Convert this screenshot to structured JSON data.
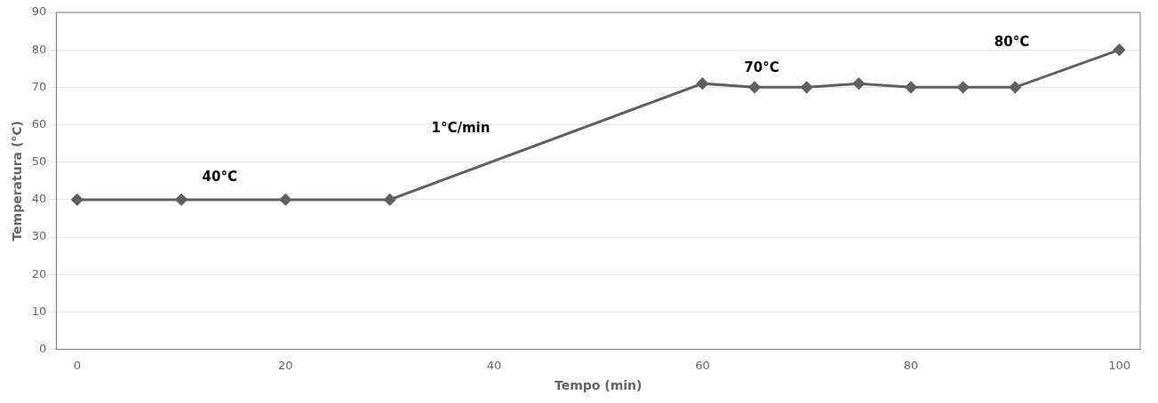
{
  "chart_data": {
    "type": "line",
    "x": [
      0,
      10,
      20,
      30,
      60,
      65,
      70,
      75,
      80,
      85,
      90,
      100
    ],
    "values": [
      40,
      40,
      40,
      40,
      71,
      70,
      70,
      71,
      70,
      70,
      70,
      80
    ],
    "xlabel": "Tempo (min)",
    "ylabel": "Temperatura (°C)",
    "xlim": [
      -2,
      102
    ],
    "ylim": [
      0,
      90
    ],
    "xticks": [
      0,
      20,
      40,
      60,
      80,
      100
    ],
    "yticks": [
      0,
      10,
      20,
      30,
      40,
      50,
      60,
      70,
      80,
      90
    ],
    "color": "#606060",
    "marker": "diamond",
    "grid": "y",
    "annotations": [
      {
        "text": "40°C",
        "x": 12,
        "y": 45
      },
      {
        "text": "1°C/min",
        "x": 34,
        "y": 58
      },
      {
        "text": "70°C",
        "x": 64,
        "y": 74
      },
      {
        "text": "80°C",
        "x": 88,
        "y": 81
      }
    ]
  }
}
